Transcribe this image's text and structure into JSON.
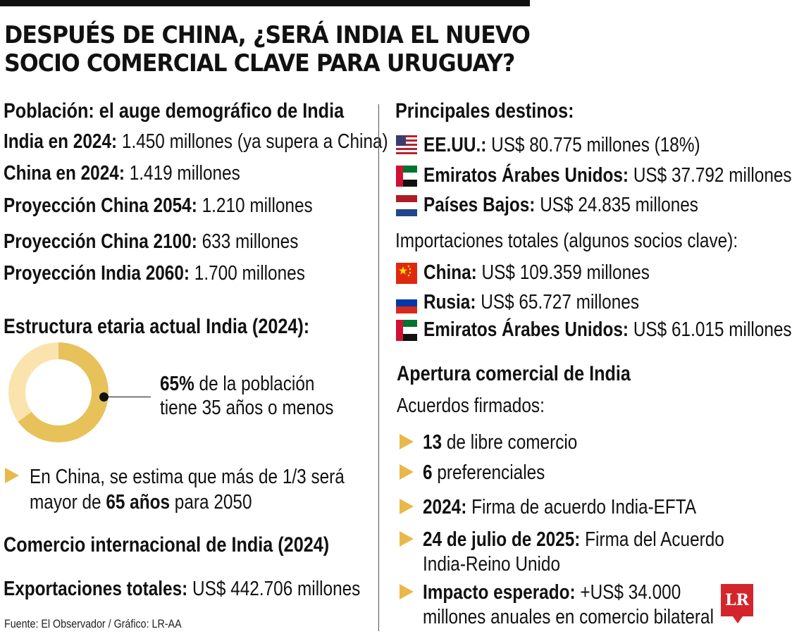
{
  "title_line1": "DESPUÉS DE CHINA, ¿SERÁ INDIA EL NUEVO",
  "title_line2": "SOCIO COMERCIAL CLAVE PARA URUGUAY?",
  "left": {
    "population_heading": "Población: el auge demográfico de India",
    "population_rows": [
      {
        "label": "India en 2024:",
        "value": " 1.450 millones (ya supera a China)"
      },
      {
        "label": "China en 2024:",
        "value": " 1.419 millones"
      },
      {
        "label": "Proyección China 2054:",
        "value": " 1.210 millones"
      },
      {
        "label": "Proyección China 2100:",
        "value": " 633 millones"
      },
      {
        "label": "Proyección India 2060:",
        "value": " 1.700 millones"
      }
    ],
    "age_heading": "Estructura etaria actual India (2024):",
    "donut": {
      "percent": 65,
      "highlight": "65%",
      "line1_rest": " de la población",
      "line2": "tiene 35 años o menos",
      "colors": {
        "main": "#E7C15A",
        "rest": "#FBE3AE"
      }
    },
    "china_note": {
      "line1": "En China, se estima que más de 1/3 será",
      "line2_pre": "mayor de ",
      "line2_bold": "65 años",
      "line2_post": " para 2050"
    },
    "trade_heading": "Comercio internacional de India (2024)",
    "exports": {
      "label": "Exportaciones totales:",
      "value": " US$ 442.706 millones"
    },
    "source": "Fuente: El Observador / Gráfico: LR-AA"
  },
  "right": {
    "destinations_heading": "Principales destinos:",
    "destinations": [
      {
        "flag": "usa-flag-icon",
        "label": "EE.UU.:",
        "value": " US$ 80.775 millones (18%)"
      },
      {
        "flag": "uae-flag-icon",
        "label": "Emiratos Árabes Unidos:",
        "value": " US$ 37.792 millones"
      },
      {
        "flag": "netherlands-flag-icon",
        "label": "Países Bajos:",
        "value": " US$ 24.835 millones"
      }
    ],
    "imports_heading": "Importaciones totales (algunos socios clave):",
    "imports": [
      {
        "flag": "china-flag-icon",
        "label": "China:",
        "value": " US$ 109.359 millones"
      },
      {
        "flag": "russia-flag-icon",
        "label": "Rusia:",
        "value": " US$ 65.727 millones"
      },
      {
        "flag": "uae-flag-icon",
        "label": "Emiratos Árabes Unidos:",
        "value": " US$ 61.015 millones"
      }
    ],
    "opening_heading": "Apertura comercial de India",
    "agreements_heading": "Acuerdos firmados:",
    "agreements": [
      {
        "bold": "13",
        "text": " de libre comercio"
      },
      {
        "bold": "6",
        "text": " preferenciales"
      },
      {
        "bold": "2024:",
        "text": " Firma de acuerdo India-EFTA"
      },
      {
        "bold": "24 de julio de 2025:",
        "text": " Firma del Acuerdo",
        "line2": "India-Reino Unido"
      },
      {
        "bold": "Impacto esperado:",
        "text": " +US$ 34.000",
        "line2": "millones anuales en comercio bilateral"
      }
    ]
  },
  "logo": "LR",
  "accent_color": "#E8B84A",
  "logo_color": "#D4252C"
}
